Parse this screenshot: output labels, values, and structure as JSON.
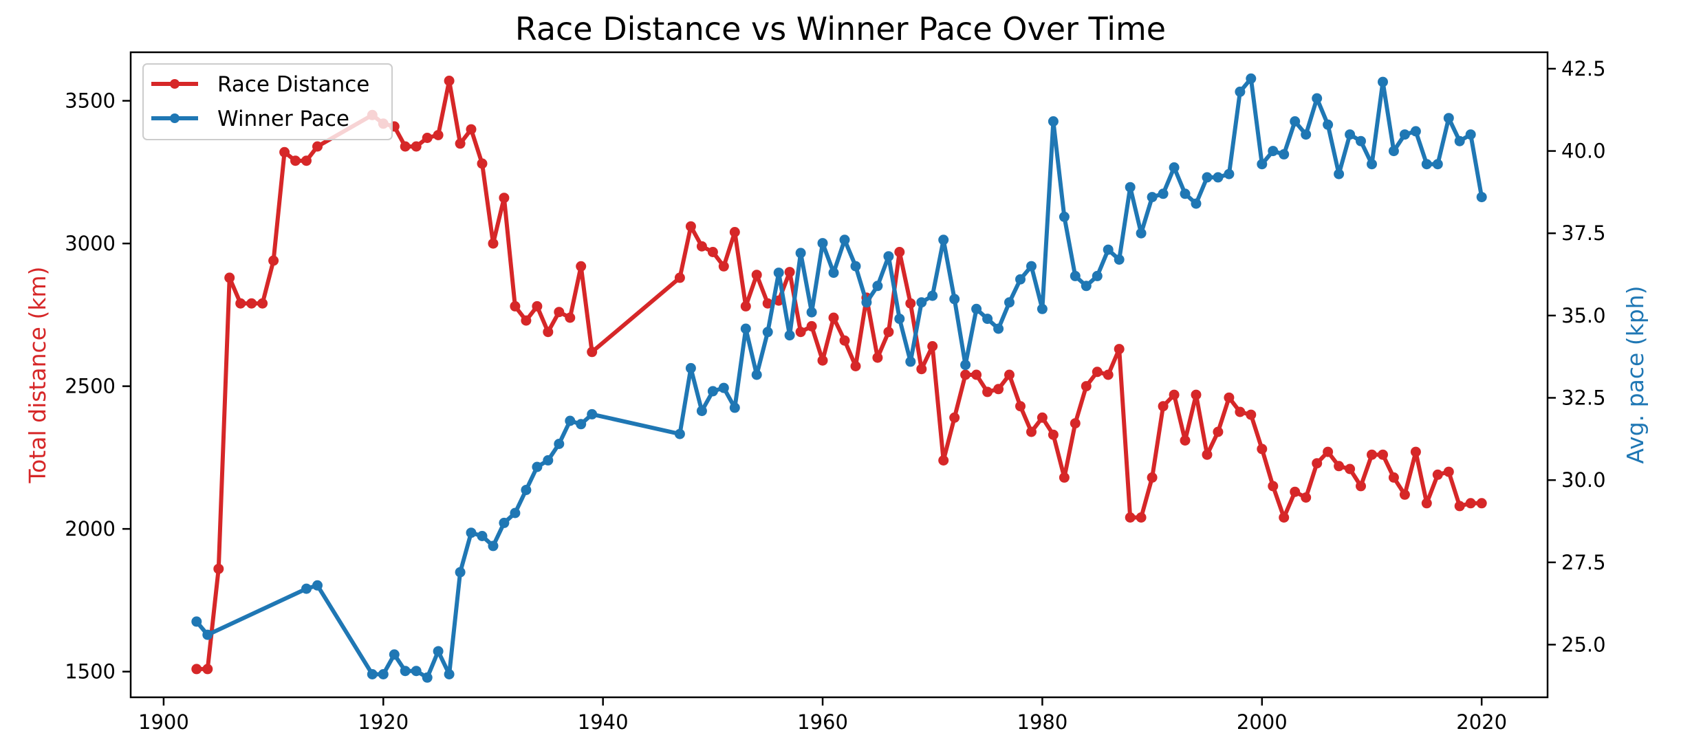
{
  "chart_data": {
    "type": "line",
    "title": "Race Distance vs Winner Pace Over Time",
    "xlabel": "",
    "ylabel_left": "Total distance (km)",
    "ylabel_right": "Avg. pace (kph)",
    "xlim": [
      1897,
      2026
    ],
    "ylim_left": [
      1410,
      3670
    ],
    "ylim_right": [
      23.4,
      43.0
    ],
    "xticks": [
      "1900",
      "1920",
      "1940",
      "1960",
      "1980",
      "2000",
      "2020"
    ],
    "yticks_left": [
      "1500",
      "2000",
      "2500",
      "3000",
      "3500"
    ],
    "yticks_right": [
      "25.0",
      "27.5",
      "30.0",
      "32.5",
      "35.0",
      "37.5",
      "40.0",
      "42.5"
    ],
    "legend_position": "upper left",
    "grid": false,
    "colors": {
      "distance": "#d62728",
      "pace": "#1f77b4"
    },
    "series": [
      {
        "name": "Race Distance",
        "axis": "left",
        "color": "#d62728",
        "points": [
          [
            1903,
            1509
          ],
          [
            1904,
            1509
          ],
          [
            1905,
            1860
          ],
          [
            1906,
            2880
          ],
          [
            1907,
            2790
          ],
          [
            1908,
            2790
          ],
          [
            1909,
            2790
          ],
          [
            1910,
            2940
          ],
          [
            1911,
            3320
          ],
          [
            1912,
            3290
          ],
          [
            1913,
            3290
          ],
          [
            1914,
            3340
          ],
          [
            1919,
            3450
          ],
          [
            1920,
            3420
          ],
          [
            1921,
            3410
          ],
          [
            1922,
            3340
          ],
          [
            1923,
            3340
          ],
          [
            1924,
            3370
          ],
          [
            1925,
            3380
          ],
          [
            1926,
            3570
          ],
          [
            1927,
            3350
          ],
          [
            1928,
            3400
          ],
          [
            1929,
            3280
          ],
          [
            1930,
            3000
          ],
          [
            1931,
            3160
          ],
          [
            1932,
            2780
          ],
          [
            1933,
            2730
          ],
          [
            1934,
            2780
          ],
          [
            1935,
            2690
          ],
          [
            1936,
            2760
          ],
          [
            1937,
            2740
          ],
          [
            1938,
            2920
          ],
          [
            1939,
            2620
          ],
          [
            1947,
            2880
          ],
          [
            1948,
            3060
          ],
          [
            1949,
            2990
          ],
          [
            1950,
            2970
          ],
          [
            1951,
            2920
          ],
          [
            1952,
            3040
          ],
          [
            1953,
            2780
          ],
          [
            1954,
            2890
          ],
          [
            1955,
            2790
          ],
          [
            1956,
            2800
          ],
          [
            1957,
            2900
          ],
          [
            1958,
            2690
          ],
          [
            1959,
            2710
          ],
          [
            1960,
            2590
          ],
          [
            1961,
            2740
          ],
          [
            1962,
            2660
          ],
          [
            1963,
            2570
          ],
          [
            1964,
            2810
          ],
          [
            1965,
            2600
          ],
          [
            1966,
            2690
          ],
          [
            1967,
            2970
          ],
          [
            1968,
            2790
          ],
          [
            1969,
            2560
          ],
          [
            1970,
            2640
          ],
          [
            1971,
            2240
          ],
          [
            1972,
            2390
          ],
          [
            1973,
            2540
          ],
          [
            1974,
            2540
          ],
          [
            1975,
            2480
          ],
          [
            1976,
            2490
          ],
          [
            1977,
            2540
          ],
          [
            1978,
            2430
          ],
          [
            1979,
            2340
          ],
          [
            1980,
            2390
          ],
          [
            1981,
            2330
          ],
          [
            1982,
            2180
          ],
          [
            1983,
            2370
          ],
          [
            1984,
            2500
          ],
          [
            1985,
            2550
          ],
          [
            1986,
            2540
          ],
          [
            1987,
            2630
          ],
          [
            1988,
            2040
          ],
          [
            1989,
            2040
          ],
          [
            1990,
            2180
          ],
          [
            1991,
            2430
          ],
          [
            1992,
            2470
          ],
          [
            1993,
            2310
          ],
          [
            1994,
            2470
          ],
          [
            1995,
            2260
          ],
          [
            1996,
            2340
          ],
          [
            1997,
            2460
          ],
          [
            1998,
            2410
          ],
          [
            1999,
            2400
          ],
          [
            2000,
            2280
          ],
          [
            2001,
            2150
          ],
          [
            2002,
            2040
          ],
          [
            2003,
            2130
          ],
          [
            2004,
            2110
          ],
          [
            2005,
            2230
          ],
          [
            2006,
            2270
          ],
          [
            2007,
            2220
          ],
          [
            2008,
            2210
          ],
          [
            2009,
            2150
          ],
          [
            2010,
            2260
          ],
          [
            2011,
            2260
          ],
          [
            2012,
            2180
          ],
          [
            2013,
            2120
          ],
          [
            2014,
            2270
          ],
          [
            2015,
            2090
          ],
          [
            2016,
            2190
          ],
          [
            2017,
            2200
          ],
          [
            2018,
            2080
          ],
          [
            2019,
            2090
          ],
          [
            2020,
            2090
          ]
        ]
      },
      {
        "name": "Winner Pace",
        "axis": "right",
        "color": "#1f77b4",
        "points": [
          [
            1903,
            25.7
          ],
          [
            1904,
            25.3
          ],
          [
            1913,
            26.7
          ],
          [
            1914,
            26.8
          ],
          [
            1919,
            24.1
          ],
          [
            1920,
            24.1
          ],
          [
            1921,
            24.7
          ],
          [
            1922,
            24.2
          ],
          [
            1923,
            24.2
          ],
          [
            1924,
            24.0
          ],
          [
            1925,
            24.8
          ],
          [
            1926,
            24.1
          ],
          [
            1927,
            27.2
          ],
          [
            1928,
            28.4
          ],
          [
            1929,
            28.3
          ],
          [
            1930,
            28.0
          ],
          [
            1931,
            28.7
          ],
          [
            1932,
            29.0
          ],
          [
            1933,
            29.7
          ],
          [
            1934,
            30.4
          ],
          [
            1935,
            30.6
          ],
          [
            1936,
            31.1
          ],
          [
            1937,
            31.8
          ],
          [
            1938,
            31.7
          ],
          [
            1939,
            32.0
          ],
          [
            1947,
            31.4
          ],
          [
            1948,
            33.4
          ],
          [
            1949,
            32.1
          ],
          [
            1950,
            32.7
          ],
          [
            1951,
            32.8
          ],
          [
            1952,
            32.2
          ],
          [
            1953,
            34.6
          ],
          [
            1954,
            33.2
          ],
          [
            1955,
            34.5
          ],
          [
            1956,
            36.3
          ],
          [
            1957,
            34.4
          ],
          [
            1958,
            36.9
          ],
          [
            1959,
            35.1
          ],
          [
            1960,
            37.2
          ],
          [
            1961,
            36.3
          ],
          [
            1962,
            37.3
          ],
          [
            1963,
            36.5
          ],
          [
            1964,
            35.4
          ],
          [
            1965,
            35.9
          ],
          [
            1966,
            36.8
          ],
          [
            1967,
            34.9
          ],
          [
            1968,
            33.6
          ],
          [
            1969,
            35.4
          ],
          [
            1970,
            35.6
          ],
          [
            1971,
            37.3
          ],
          [
            1972,
            35.5
          ],
          [
            1973,
            33.5
          ],
          [
            1974,
            35.2
          ],
          [
            1975,
            34.9
          ],
          [
            1976,
            34.6
          ],
          [
            1977,
            35.4
          ],
          [
            1978,
            36.1
          ],
          [
            1979,
            36.5
          ],
          [
            1980,
            35.2
          ],
          [
            1981,
            40.9
          ],
          [
            1982,
            38.0
          ],
          [
            1983,
            36.2
          ],
          [
            1984,
            35.9
          ],
          [
            1985,
            36.2
          ],
          [
            1986,
            37.0
          ],
          [
            1987,
            36.7
          ],
          [
            1988,
            38.9
          ],
          [
            1989,
            37.5
          ],
          [
            1990,
            38.6
          ],
          [
            1991,
            38.7
          ],
          [
            1992,
            39.5
          ],
          [
            1993,
            38.7
          ],
          [
            1994,
            38.4
          ],
          [
            1995,
            39.2
          ],
          [
            1996,
            39.2
          ],
          [
            1997,
            39.3
          ],
          [
            1998,
            41.8
          ],
          [
            1999,
            42.2
          ],
          [
            2000,
            39.6
          ],
          [
            2001,
            40.0
          ],
          [
            2002,
            39.9
          ],
          [
            2003,
            40.9
          ],
          [
            2004,
            40.5
          ],
          [
            2005,
            41.6
          ],
          [
            2006,
            40.8
          ],
          [
            2007,
            39.3
          ],
          [
            2008,
            40.5
          ],
          [
            2009,
            40.3
          ],
          [
            2010,
            39.6
          ],
          [
            2011,
            42.1
          ],
          [
            2012,
            40.0
          ],
          [
            2013,
            40.5
          ],
          [
            2014,
            40.6
          ],
          [
            2015,
            39.6
          ],
          [
            2016,
            39.6
          ],
          [
            2017,
            41.0
          ],
          [
            2018,
            40.3
          ],
          [
            2019,
            40.5
          ],
          [
            2020,
            38.6
          ]
        ]
      }
    ]
  }
}
